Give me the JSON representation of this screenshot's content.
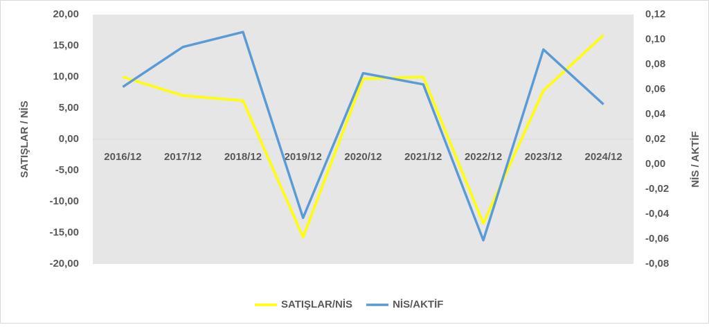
{
  "chart_data": {
    "type": "line",
    "categories": [
      "2016/12",
      "2017/12",
      "2018/12",
      "2019/12",
      "2020/12",
      "2021/12",
      "2022/12",
      "2023/12",
      "2024/12"
    ],
    "series": [
      {
        "name": "SATIŞLAR/NİS",
        "color": "#ffff00",
        "values": [
          10.0,
          7.0,
          6.2,
          -15.7,
          9.7,
          10.0,
          -13.5,
          7.8,
          16.7
        ]
      },
      {
        "name": "NİS/AKTİF",
        "color": "#5b9bd5",
        "axis": "y2",
        "values": [
          0.062,
          0.094,
          0.106,
          -0.043,
          0.073,
          0.064,
          -0.061,
          0.092,
          0.048
        ]
      }
    ],
    "y_label": "SATIŞLAR / NİS",
    "y2_label": "NİS / AKTİF",
    "ylim": [
      -20,
      20
    ],
    "yticks": [
      {
        "value": -20,
        "label": "-20,00"
      },
      {
        "value": -15,
        "label": "-15,00"
      },
      {
        "value": -10,
        "label": "-10,00"
      },
      {
        "value": -5,
        "label": "-5,00"
      },
      {
        "value": 0,
        "label": "0,00"
      },
      {
        "value": 5,
        "label": "5,00"
      },
      {
        "value": 10,
        "label": "10,00"
      },
      {
        "value": 15,
        "label": "15,00"
      },
      {
        "value": 20,
        "label": "20,00"
      }
    ],
    "y2lim": [
      -0.08,
      0.12
    ],
    "y2ticks": [
      {
        "value": -0.08,
        "label": "-0,08"
      },
      {
        "value": -0.06,
        "label": "-0,06"
      },
      {
        "value": -0.04,
        "label": "-0,04"
      },
      {
        "value": -0.02,
        "label": "-0,02"
      },
      {
        "value": 0,
        "label": "0,00"
      },
      {
        "value": 0.02,
        "label": "0,02"
      },
      {
        "value": 0.04,
        "label": "0,04"
      },
      {
        "value": 0.06,
        "label": "0,06"
      },
      {
        "value": 0.08,
        "label": "0,08"
      },
      {
        "value": 0.1,
        "label": "0,10"
      },
      {
        "value": 0.12,
        "label": "0,12"
      }
    ],
    "legend": "bottom",
    "grid": false
  }
}
